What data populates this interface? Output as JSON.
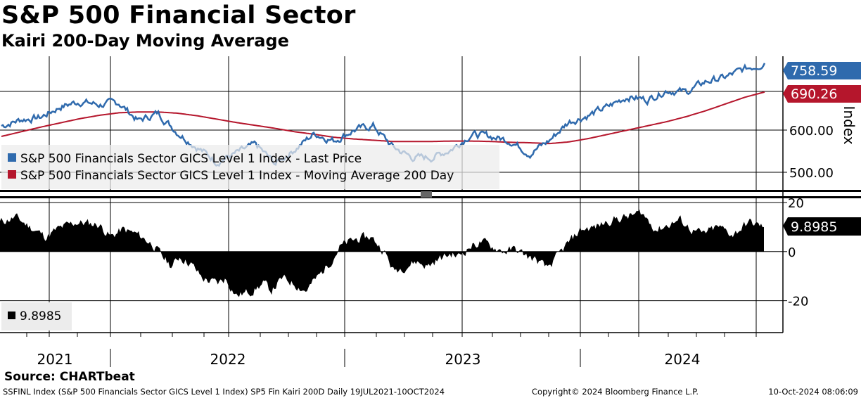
{
  "header": {
    "title": "S&P 500 Financial Sector",
    "subtitle": "Kairi 200-Day Moving Average"
  },
  "footer": {
    "source": "Source: CHARTbeat",
    "description": "SSFINL Index (S&P 500 Financials Sector GICS Level 1 Index) SP5 Fin Kairi 200D  Daily 19JUL2021-10OCT2024",
    "copyright": "Copyright© 2024 Bloomberg Finance L.P.",
    "timestamp": "10-Oct-2024 08:06:09"
  },
  "colors": {
    "price": "#2f6aad",
    "ma": "#b5162c",
    "kairi": "#000000",
    "grid": "#000000"
  },
  "chart_data": [
    {
      "type": "line",
      "title": "S&P 500 Financials Sector GICS Level 1 Index",
      "ylabel": "Index",
      "ylim": [
        455,
        775
      ],
      "yticks": [
        500,
        600
      ],
      "ytick_labels": [
        "500.00",
        "600.00"
      ],
      "x": [
        "2021-07",
        "2021-08",
        "2021-09",
        "2021-10",
        "2021-11",
        "2021-12",
        "2022-01",
        "2022-02",
        "2022-03",
        "2022-04",
        "2022-05",
        "2022-06",
        "2022-07",
        "2022-08",
        "2022-09",
        "2022-10",
        "2022-11",
        "2022-12",
        "2023-01",
        "2023-02",
        "2023-03",
        "2023-04",
        "2023-05",
        "2023-06",
        "2023-07",
        "2023-08",
        "2023-09",
        "2023-10",
        "2023-11",
        "2023-12",
        "2024-01",
        "2024-02",
        "2024-03",
        "2024-04",
        "2024-05",
        "2024-06",
        "2024-07",
        "2024-08",
        "2024-09",
        "2024-10"
      ],
      "series": [
        {
          "name": "S&P 500 Financials Sector GICS Level 1 Index - Last Price",
          "last_label": "758.59",
          "values": [
            610,
            625,
            630,
            655,
            668,
            660,
            665,
            622,
            640,
            595,
            560,
            525,
            545,
            565,
            520,
            555,
            592,
            575,
            600,
            610,
            560,
            535,
            535,
            555,
            590,
            585,
            575,
            545,
            575,
            620,
            635,
            655,
            680,
            672,
            695,
            690,
            715,
            725,
            745,
            758.59
          ]
        },
        {
          "name": "S&P 500 Financials Sector GICS Level 1 Index - Moving Average 200 Day",
          "last_label": "690.26",
          "values": [
            585,
            596,
            607,
            617,
            627,
            635,
            641,
            643,
            643,
            640,
            634,
            626,
            618,
            611,
            604,
            596,
            590,
            583,
            579,
            576,
            573,
            573,
            573,
            574,
            574,
            573,
            571,
            570,
            568,
            572,
            580,
            590,
            600,
            610,
            620,
            632,
            646,
            662,
            678,
            690.26
          ]
        }
      ]
    },
    {
      "type": "bar",
      "title": "SP5 Fin Kairi 200D",
      "ylim": [
        -33,
        22
      ],
      "yticks": [
        20,
        0,
        -20
      ],
      "ytick_labels": [
        "20",
        "0",
        "-20"
      ],
      "last_label": "9.8985",
      "legend_value": "9.8985",
      "knots": [
        [
          0,
          12
        ],
        [
          0.02,
          14
        ],
        [
          0.045,
          9
        ],
        [
          0.06,
          6
        ],
        [
          0.075,
          9
        ],
        [
          0.1,
          12
        ],
        [
          0.13,
          11
        ],
        [
          0.145,
          6
        ],
        [
          0.16,
          9
        ],
        [
          0.18,
          7
        ],
        [
          0.2,
          3
        ],
        [
          0.215,
          -3
        ],
        [
          0.225,
          -6
        ],
        [
          0.235,
          -2
        ],
        [
          0.25,
          -5
        ],
        [
          0.265,
          -11
        ],
        [
          0.285,
          -13
        ],
        [
          0.295,
          -11
        ],
        [
          0.31,
          -18
        ],
        [
          0.33,
          -16
        ],
        [
          0.345,
          -13
        ],
        [
          0.355,
          -16
        ],
        [
          0.37,
          -11
        ],
        [
          0.385,
          -13
        ],
        [
          0.4,
          -16
        ],
        [
          0.42,
          -9
        ],
        [
          0.435,
          -3
        ],
        [
          0.445,
          2
        ],
        [
          0.465,
          5
        ],
        [
          0.485,
          6
        ],
        [
          0.495,
          3
        ],
        [
          0.505,
          -1
        ],
        [
          0.515,
          -8
        ],
        [
          0.53,
          -6
        ],
        [
          0.545,
          -4
        ],
        [
          0.56,
          -6
        ],
        [
          0.575,
          -3
        ],
        [
          0.59,
          -1
        ],
        [
          0.6,
          -2
        ],
        [
          0.615,
          2
        ],
        [
          0.63,
          4
        ],
        [
          0.645,
          2
        ],
        [
          0.66,
          0
        ],
        [
          0.675,
          1
        ],
        [
          0.69,
          -2
        ],
        [
          0.705,
          -4
        ],
        [
          0.715,
          -7
        ],
        [
          0.725,
          -4
        ],
        [
          0.74,
          2
        ],
        [
          0.76,
          9
        ],
        [
          0.78,
          10
        ],
        [
          0.8,
          13
        ],
        [
          0.82,
          14
        ],
        [
          0.84,
          16
        ],
        [
          0.85,
          12
        ],
        [
          0.86,
          9
        ],
        [
          0.875,
          11
        ],
        [
          0.89,
          13
        ],
        [
          0.905,
          9
        ],
        [
          0.92,
          7
        ],
        [
          0.94,
          10
        ],
        [
          0.96,
          7
        ],
        [
          0.98,
          12
        ],
        [
          1,
          10
        ]
      ]
    }
  ],
  "axes": {
    "years": [
      "2021",
      "2022",
      "2023",
      "2024"
    ]
  },
  "legend": {
    "price": "S&P 500 Financials Sector GICS Level 1 Index - Last Price",
    "ma": "S&P 500 Financials Sector GICS Level 1 Index - Moving Average 200 Day"
  }
}
